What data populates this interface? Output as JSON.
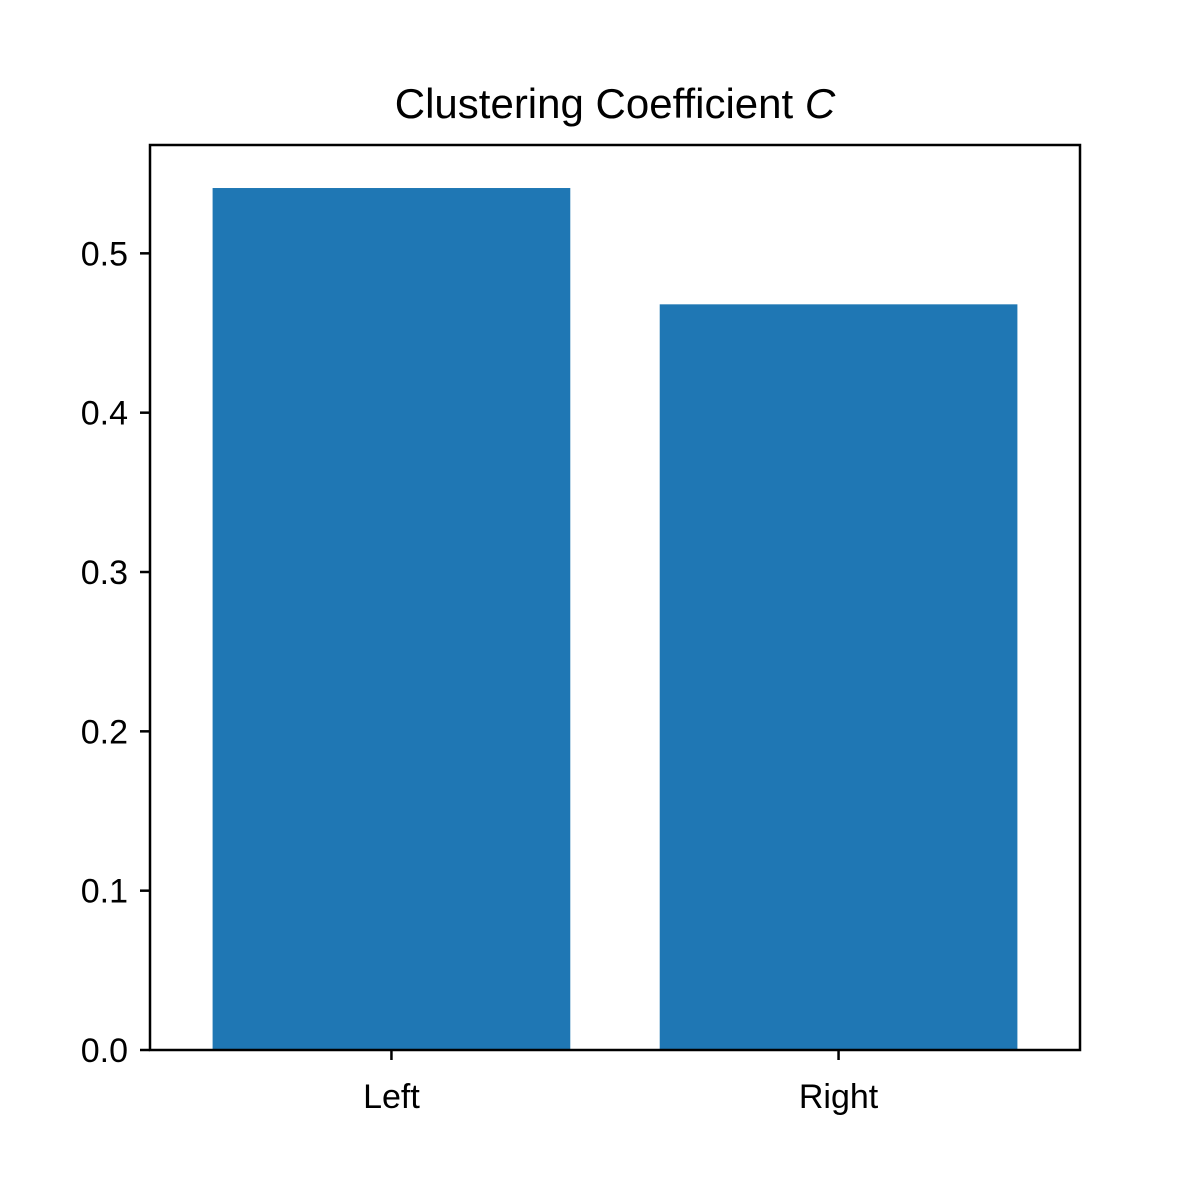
{
  "chart_data": {
    "type": "bar",
    "title": "Clustering Coefficient",
    "title_symbol": "C",
    "xlabel": "",
    "ylabel": "",
    "categories": [
      "Left",
      "Right"
    ],
    "values": [
      0.541,
      0.468
    ],
    "ylim": [
      0,
      0.568
    ],
    "yticks": [
      0.0,
      0.1,
      0.2,
      0.3,
      0.4,
      0.5
    ],
    "ytick_labels": [
      "0.0",
      "0.1",
      "0.2",
      "0.3",
      "0.4",
      "0.5"
    ],
    "bar_color": "#1f77b4",
    "grid": false,
    "legend": false
  }
}
